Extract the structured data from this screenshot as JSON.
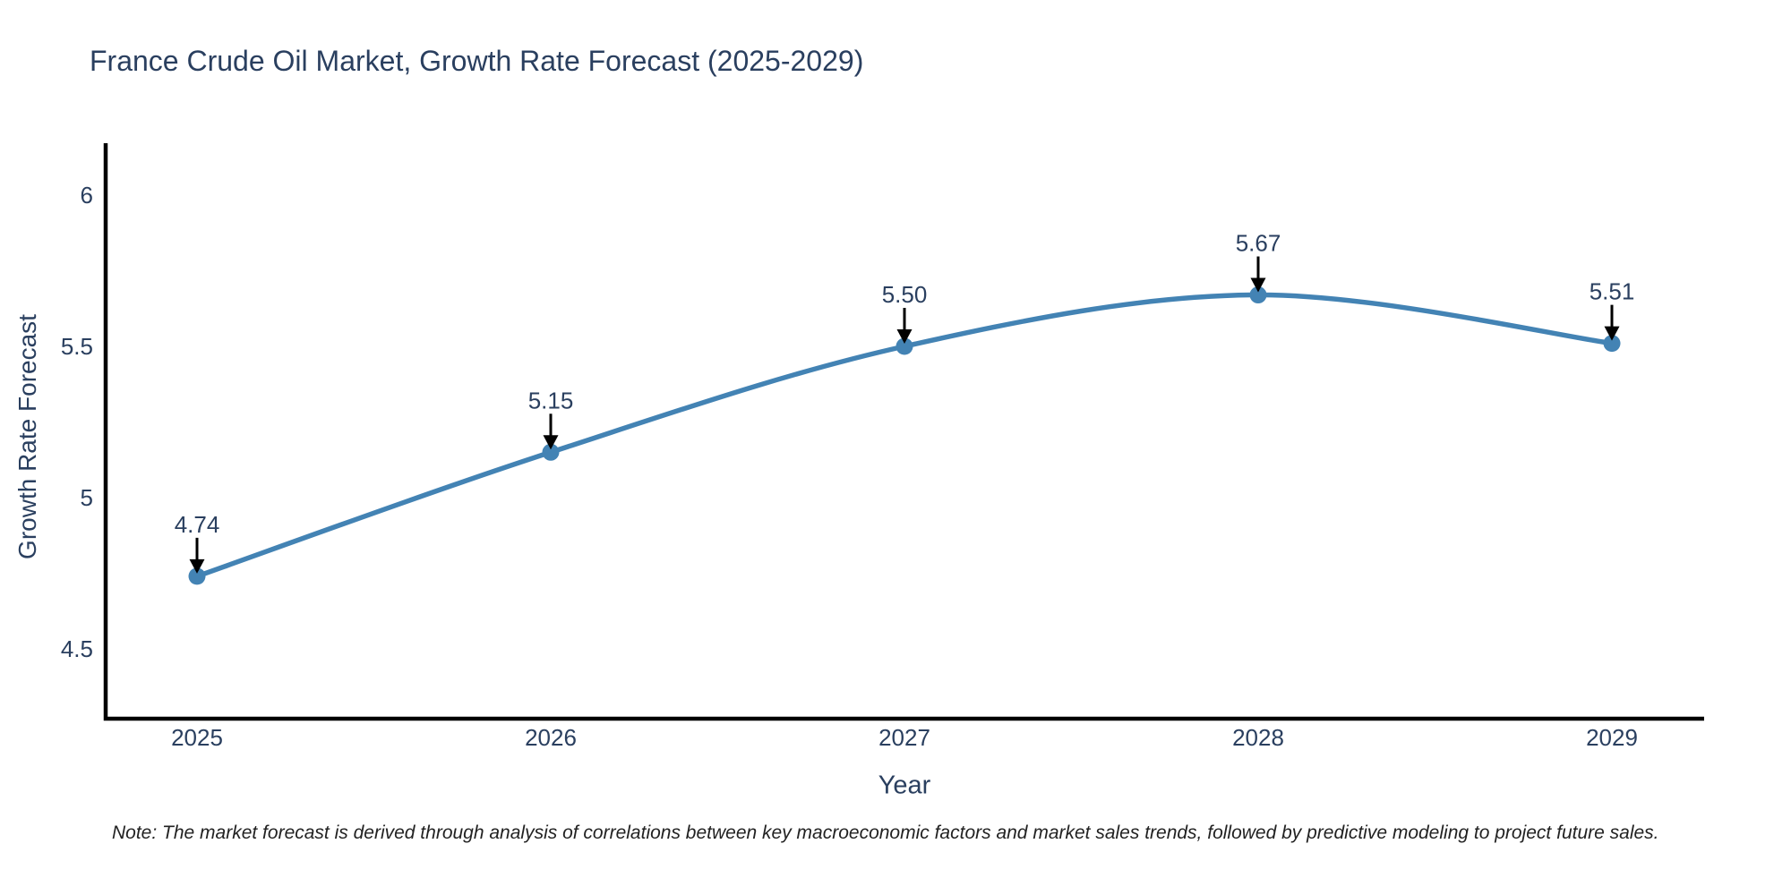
{
  "note": "Note: The market forecast is derived through analysis of correlations between key macroeconomic factors and market sales trends, followed by predictive modeling to project future sales.",
  "chart_data": {
    "type": "line",
    "title": "France Crude Oil Market, Growth Rate Forecast (2025-2029)",
    "xlabel": "Year",
    "ylabel": "Growth Rate Forecast",
    "categories": [
      "2025",
      "2026",
      "2027",
      "2028",
      "2029"
    ],
    "series": [
      {
        "name": "Growth Rate Forecast",
        "values": [
          4.74,
          5.15,
          5.5,
          5.67,
          5.51
        ]
      }
    ],
    "point_labels": [
      "4.74",
      "5.15",
      "5.50",
      "5.67",
      "5.51"
    ],
    "yticks": [
      {
        "value": 4.5,
        "label": "4.5"
      },
      {
        "value": 5,
        "label": "5"
      },
      {
        "value": 5.5,
        "label": "5.5"
      },
      {
        "value": 6,
        "label": "6"
      }
    ],
    "ylim": [
      4.27,
      6.17
    ],
    "line_shape": "spline",
    "grid": false,
    "legend": "none",
    "annotations": "value label with downward black arrow above each data point",
    "colors": {
      "line": "#4383b4",
      "marker": "#4383b4",
      "text": "#2a3f5f",
      "axis": "#000000",
      "arrow": "#000000",
      "note_text": "#222222",
      "background": "#ffffff"
    }
  }
}
